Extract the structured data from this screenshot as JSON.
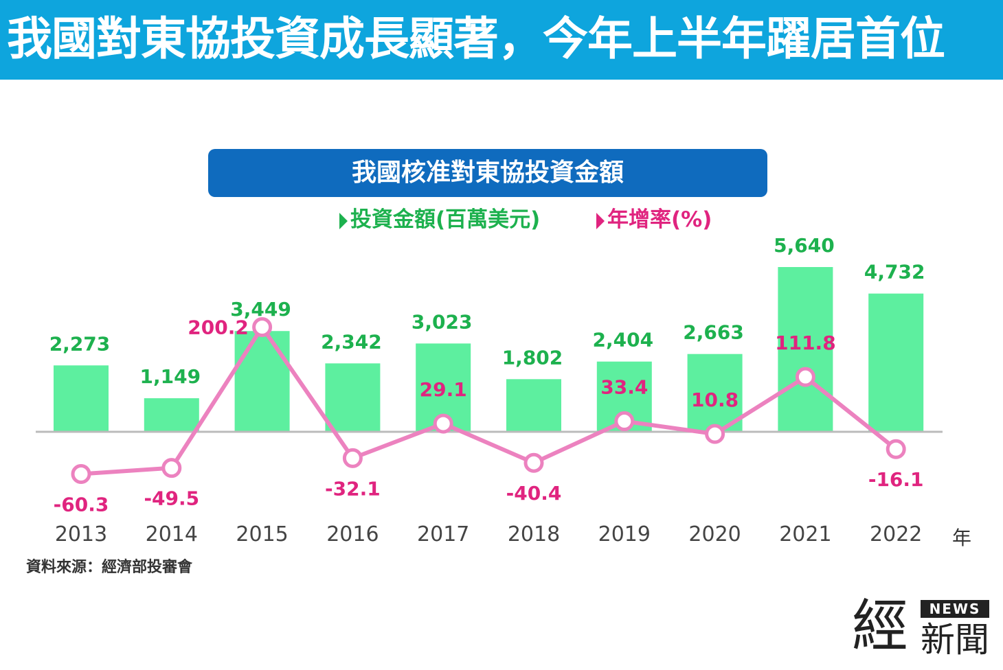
{
  "headline": "我國對東協投資成長顯著，今年上半年躍居首位",
  "chart_data": {
    "type": "bar",
    "title": "我國核准對東協投資金額",
    "categories": [
      "2013",
      "2014",
      "2015",
      "2016",
      "2017",
      "2018",
      "2019",
      "2020",
      "2021",
      "2022"
    ],
    "series": [
      {
        "name": "投資金額(百萬美元)",
        "type": "bar",
        "color": "#5def9f",
        "label_color": "#1db14e",
        "values": [
          2273,
          1149,
          3449,
          2342,
          3023,
          1802,
          2404,
          2663,
          5640,
          4732
        ],
        "labels": [
          "2,273",
          "1,149",
          "3,449",
          "2,342",
          "3,023",
          "1,802",
          "2,404",
          "2,663",
          "5,640",
          "4,732"
        ]
      },
      {
        "name": "年增率(%)",
        "type": "line",
        "color": "#ec82bf",
        "label_color": "#e0247f",
        "values": [
          -60.3,
          -49.5,
          200.2,
          -32.1,
          29.1,
          -40.4,
          33.4,
          10.8,
          111.8,
          -16.1
        ],
        "labels": [
          "-60.3",
          "-49.5",
          "200.2",
          "-32.1",
          "29.1",
          "-40.4",
          "33.4",
          "10.8",
          "111.8",
          "-16.1"
        ]
      }
    ],
    "x_unit": "年",
    "grid": false,
    "legend_position": "top-center"
  },
  "source": "資料來源：經濟部投審會",
  "logo": {
    "main": "經",
    "badge": "NEWS",
    "sub": "新聞"
  },
  "colors": {
    "header": "#0ea5dd",
    "title_box": "#0f6bbe"
  }
}
